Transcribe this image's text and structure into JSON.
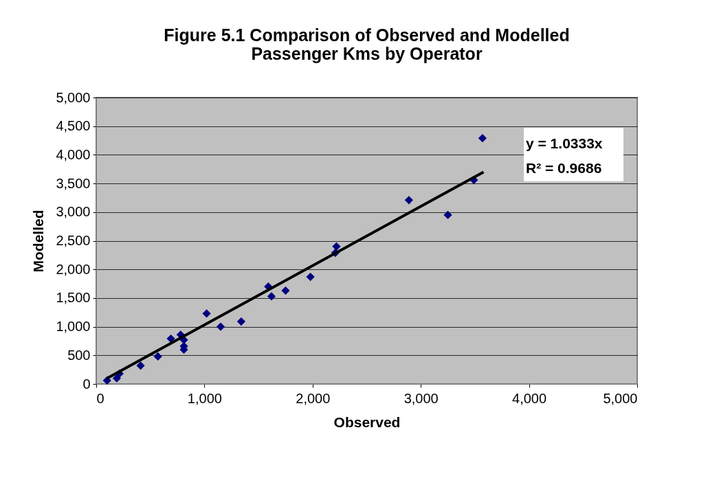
{
  "chart_data": {
    "type": "scatter",
    "title": [
      "Figure 5.1  Comparison of Observed and Modelled",
      "Passenger Kms by Operator"
    ],
    "xlabel": "Observed",
    "ylabel": "Modelled",
    "xlim": [
      0,
      5000
    ],
    "ylim": [
      0,
      5000
    ],
    "xticks": [
      {
        "value": 0,
        "label": "0"
      },
      {
        "value": 1000,
        "label": "1,000"
      },
      {
        "value": 2000,
        "label": "2,000"
      },
      {
        "value": 3000,
        "label": "3,000"
      },
      {
        "value": 4000,
        "label": "4,000"
      },
      {
        "value": 5000,
        "label": "5,000"
      }
    ],
    "yticks": [
      {
        "value": 0,
        "label": "0"
      },
      {
        "value": 500,
        "label": "500"
      },
      {
        "value": 1000,
        "label": "1,000"
      },
      {
        "value": 1500,
        "label": "1,500"
      },
      {
        "value": 2000,
        "label": "2,000"
      },
      {
        "value": 2500,
        "label": "2,500"
      },
      {
        "value": 3000,
        "label": "3,000"
      },
      {
        "value": 3500,
        "label": "3,500"
      },
      {
        "value": 4000,
        "label": "4,000"
      },
      {
        "value": 4500,
        "label": "4,500"
      },
      {
        "value": 5000,
        "label": "5,000"
      }
    ],
    "grid": "y",
    "legend": false,
    "marker": "diamond",
    "series": [
      {
        "color": "#000080",
        "x": [
          100,
          190,
          215,
          410,
          570,
          690,
          780,
          810,
          810,
          810,
          1020,
          1150,
          1340,
          1590,
          1620,
          1750,
          1980,
          2220,
          2210,
          2890,
          3250,
          3490,
          3570
        ],
        "values": [
          60,
          100,
          180,
          320,
          480,
          790,
          860,
          770,
          660,
          600,
          1230,
          1000,
          1090,
          1700,
          1530,
          1630,
          1870,
          2400,
          2290,
          3210,
          2950,
          3560,
          4290
        ]
      },
      {
        "type": "line",
        "color": "#000000",
        "x": [
          100,
          3580
        ],
        "values": [
          100,
          3700
        ],
        "marker": "none"
      }
    ],
    "annotations": [
      "y = 1.0333x",
      "R² = 0.9686"
    ]
  }
}
